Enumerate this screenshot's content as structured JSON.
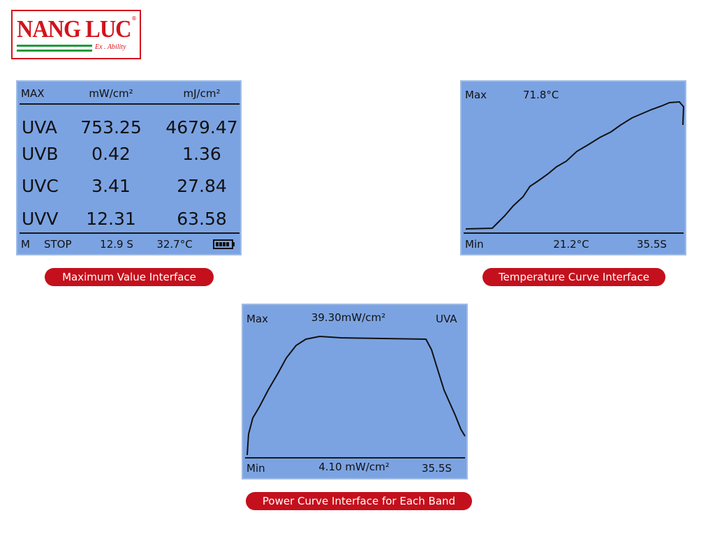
{
  "logo": {
    "title": "NANG LUC",
    "mark": "®",
    "tagline": "Ex . Ability"
  },
  "max_panel": {
    "header": [
      "MAX",
      "mW/cm²",
      "mJ/cm²"
    ],
    "rows": [
      [
        "UVA",
        "753.25",
        "4679.47"
      ],
      [
        "UVB",
        "0.42",
        "1.36"
      ],
      [
        "UVC",
        "3.41",
        "27.84"
      ],
      [
        "UVV",
        "12.31",
        "63.58"
      ]
    ],
    "status": [
      "M",
      "STOP",
      "12.9 S",
      "32.7°C"
    ],
    "caption": "Maximum Value Interface"
  },
  "temp_panel": {
    "max_label": "Max",
    "max_value": "71.8°C",
    "min_label": "Min",
    "min_value": "21.2°C",
    "time": "35.5S",
    "caption": "Temperature Curve Interface"
  },
  "power_panel": {
    "max_label": "Max",
    "max_value": "39.30mW/cm²",
    "band": "UVA",
    "min_label": "Min",
    "min_value": "4.10 mW/cm²",
    "time": "35.5S",
    "caption": "Power Curve Interface for Each Band"
  }
}
